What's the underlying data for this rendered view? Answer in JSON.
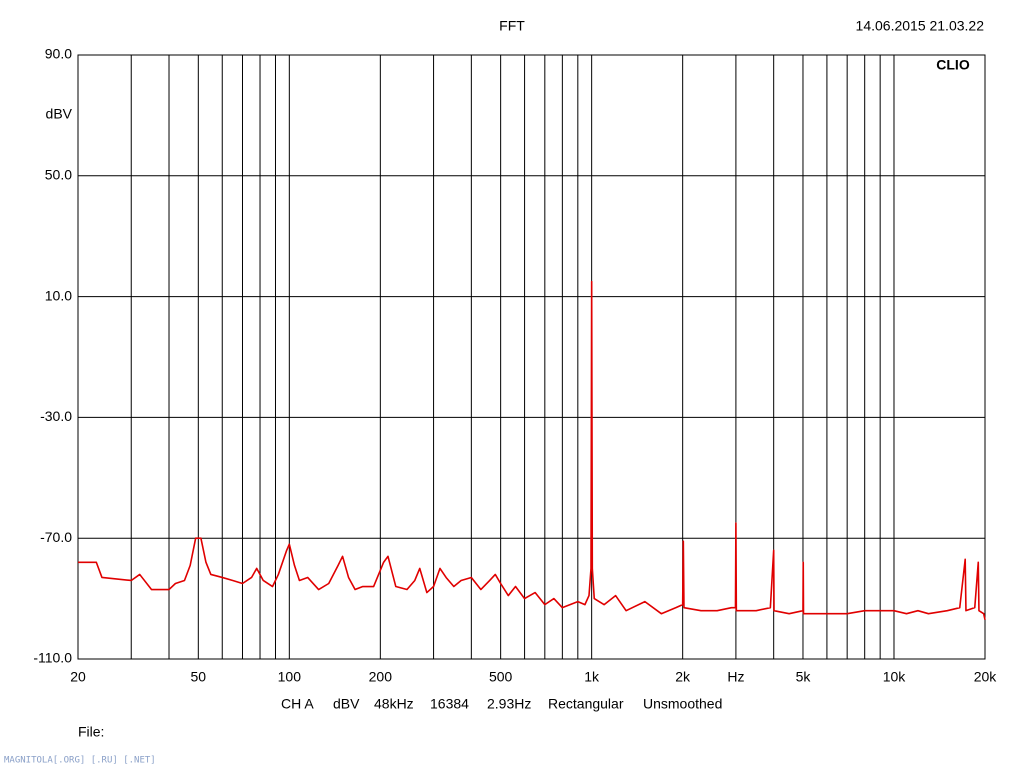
{
  "chart_data": {
    "type": "line",
    "title": "FFT",
    "timestamp": "14.06.2015 21.03.22",
    "brand": "CLIO",
    "y_label": "dBV",
    "settings": [
      "CH A",
      "dBV",
      "48kHz",
      "16384",
      "2.93Hz",
      "Rectangular",
      "Unsmoothed"
    ],
    "file_label": "File:",
    "watermark": "MAGNITOLA[.ORG] [.RU] [.NET]",
    "x_scale": "log",
    "grid": true,
    "xlim": [
      20,
      20000
    ],
    "ylim": [
      -110,
      90
    ],
    "xticks": [
      20,
      50,
      100,
      200,
      500,
      {
        "value": 1000,
        "label": "1k"
      },
      {
        "value": 2000,
        "label": "2k"
      },
      {
        "value": 3000,
        "label": "Hz"
      },
      {
        "value": 5000,
        "label": "5k"
      },
      {
        "value": 10000,
        "label": "10k"
      },
      {
        "value": 20000,
        "label": "20k"
      }
    ],
    "xgrid_lines": [
      30,
      40,
      60,
      70,
      80,
      90,
      300,
      400,
      600,
      700,
      800,
      900,
      4000,
      6000,
      7000,
      8000,
      9000
    ],
    "yticks": [
      {
        "value": 90,
        "label": "90.0"
      },
      {
        "value": 50,
        "label": "50.0"
      },
      {
        "value": 10,
        "label": "10.0"
      },
      {
        "value": -30,
        "label": "-30.0"
      },
      {
        "value": -70,
        "label": "-70.0"
      },
      {
        "value": -110,
        "label": "-110.0"
      }
    ],
    "series": [
      {
        "name": "CH A",
        "color": "#e00000",
        "x": [
          20,
          23,
          24,
          30,
          32,
          35,
          40,
          42,
          45,
          47,
          49,
          51,
          53,
          55,
          60,
          65,
          70,
          75,
          78,
          82,
          88,
          92,
          98,
          100,
          104,
          108,
          115,
          125,
          135,
          145,
          150,
          157,
          165,
          175,
          190,
          205,
          212,
          225,
          245,
          260,
          270,
          285,
          300,
          315,
          330,
          350,
          370,
          400,
          430,
          460,
          480,
          500,
          530,
          560,
          600,
          650,
          700,
          750,
          800,
          900,
          950,
          980,
          995,
          1000,
          1005,
          1020,
          1100,
          1200,
          1300,
          1500,
          1700,
          1900,
          2000,
          2010,
          2020,
          2300,
          2600,
          2900,
          2990,
          3000,
          3010,
          3500,
          3900,
          4000,
          4010,
          4500,
          5000,
          5010,
          5020,
          6000,
          7000,
          8000,
          9000,
          10000,
          11000,
          12000,
          13000,
          15000,
          16500,
          17200,
          17300,
          18500,
          19000,
          19100,
          19800,
          20000
        ],
        "values": [
          -78,
          -78,
          -83,
          -84,
          -82,
          -87,
          -87,
          -85,
          -84,
          -79,
          -70,
          -70,
          -78,
          -82,
          -83,
          -84,
          -85,
          -83,
          -80,
          -84,
          -86,
          -82,
          -74,
          -72,
          -79,
          -84,
          -83,
          -87,
          -85,
          -79,
          -76,
          -83,
          -87,
          -86,
          -86,
          -78,
          -76,
          -86,
          -87,
          -84,
          -80,
          -88,
          -86,
          -80,
          -83,
          -86,
          -84,
          -83,
          -87,
          -84,
          -82,
          -85,
          -89,
          -86,
          -90,
          -88,
          -92,
          -90,
          -93,
          -91,
          -92,
          -89,
          -80,
          15,
          -80,
          -90,
          -92,
          -89,
          -94,
          -91,
          -95,
          -93,
          -92,
          -71,
          -93,
          -94,
          -94,
          -93,
          -93,
          -65,
          -94,
          -94,
          -93,
          -74,
          -94,
          -95,
          -94,
          -78,
          -95,
          -95,
          -95,
          -94,
          -94,
          -94,
          -95,
          -94,
          -95,
          -94,
          -93,
          -77,
          -94,
          -93,
          -78,
          -94,
          -95,
          -97
        ]
      }
    ]
  }
}
